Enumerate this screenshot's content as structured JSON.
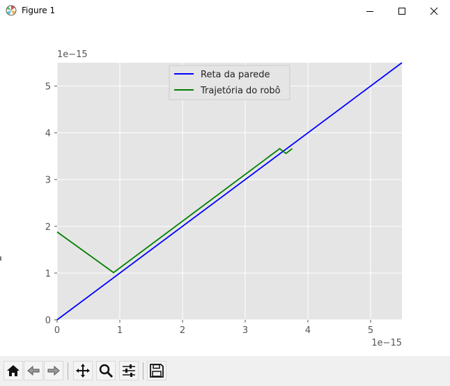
{
  "window": {
    "title": "Figure 1",
    "minimize_icon": "minimize-icon",
    "maximize_icon": "maximize-icon",
    "close_icon": "close-icon"
  },
  "chart_data": {
    "type": "line",
    "title": "",
    "xlabel": "",
    "ylabel": "",
    "x_offset_text": "1e−15",
    "y_offset_text": "1e−15",
    "xlim": [
      0,
      5.5
    ],
    "ylim": [
      0,
      5.5
    ],
    "xticks": [
      0,
      1,
      2,
      3,
      4,
      5
    ],
    "yticks": [
      0,
      1,
      2,
      3,
      4,
      5
    ],
    "grid": true,
    "background": "#e5e5e5",
    "legend_position": "upper center",
    "series": [
      {
        "name": "Reta da parede",
        "color": "#0000ff",
        "points": [
          [
            0,
            0
          ],
          [
            5.5,
            5.5
          ]
        ]
      },
      {
        "name": "Trajetória do robô",
        "color": "#008000",
        "points": [
          [
            0,
            1.88
          ],
          [
            0.9,
            1.01
          ],
          [
            3.55,
            3.66
          ],
          [
            3.65,
            3.56
          ],
          [
            3.75,
            3.66
          ]
        ]
      }
    ]
  },
  "toolbar": {
    "items": [
      {
        "name": "home-button",
        "icon": "home-icon"
      },
      {
        "name": "back-button",
        "icon": "back-arrow-icon"
      },
      {
        "name": "forward-button",
        "icon": "forward-arrow-icon"
      },
      {
        "name": "pan-button",
        "icon": "move-icon"
      },
      {
        "name": "zoom-button",
        "icon": "magnifier-icon"
      },
      {
        "name": "configure-subplots-button",
        "icon": "sliders-icon"
      },
      {
        "name": "save-button",
        "icon": "save-icon"
      }
    ]
  }
}
